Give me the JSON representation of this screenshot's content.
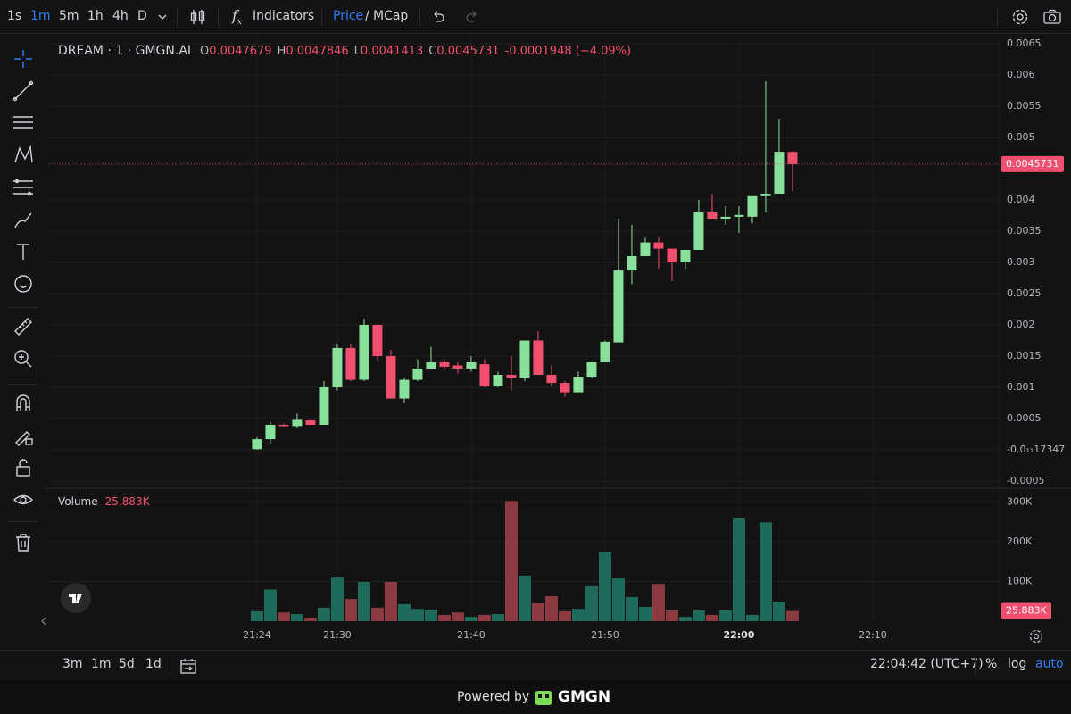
{
  "toolbar": {
    "intervals": [
      "1s",
      "1m",
      "5m",
      "1h",
      "4h",
      "D"
    ],
    "active_interval": "1m",
    "indicators": "Indicators",
    "price": "Price",
    "slash": "/",
    "mcap": "MCap"
  },
  "legend_header": {
    "title": "DREAM · 1 · GMGN.AI",
    "fields": [
      {
        "key": "O",
        "value": "0.0047679"
      },
      {
        "key": "H",
        "value": "0.0047846"
      },
      {
        "key": "L",
        "value": "0.0041413"
      },
      {
        "key": "C",
        "value": "0.0045731"
      }
    ],
    "change": "-0.0001948 (−4.09%)"
  },
  "chart_data": {
    "type": "candlestick",
    "x": [
      1284,
      1285,
      1286,
      1287,
      1288,
      1289,
      1290,
      1291,
      1292,
      1293,
      1294,
      1295,
      1296,
      1297,
      1298,
      1299,
      1300,
      1301,
      1302,
      1303,
      1304,
      1305,
      1306,
      1307,
      1308,
      1309,
      1310,
      1311,
      1312,
      1313,
      1314,
      1315,
      1316,
      1317,
      1318,
      1319,
      1320,
      1321,
      1322,
      1323,
      1324
    ],
    "open": [
      1e-05,
      0.00017,
      0.0004,
      0.00038,
      0.00047,
      0.0004,
      0.001,
      0.00163,
      0.00112,
      0.002,
      0.0015,
      0.00082,
      0.00112,
      0.0013,
      0.0014,
      0.00135,
      0.0013,
      0.00137,
      0.00102,
      0.0012,
      0.00115,
      0.00175,
      0.0012,
      0.00107,
      0.00092,
      0.00117,
      0.0014,
      0.00172,
      0.00287,
      0.0031,
      0.00332,
      0.00322,
      0.003,
      0.0032,
      0.0038,
      0.0037,
      0.00373,
      0.00373,
      0.00406,
      0.0041,
      0.0047679
    ],
    "high": [
      0.0002,
      0.00045,
      0.00042,
      0.00058,
      0.00048,
      0.0011,
      0.0017,
      0.0017,
      0.0021,
      0.002,
      0.0016,
      0.00115,
      0.00145,
      0.00165,
      0.00145,
      0.0014,
      0.0015,
      0.00145,
      0.00125,
      0.0015,
      0.00175,
      0.0019,
      0.00135,
      0.0011,
      0.00125,
      0.0014,
      0.00175,
      0.0037,
      0.0036,
      0.0034,
      0.0034,
      0.00322,
      0.0032,
      0.004,
      0.0041,
      0.0039,
      0.0039,
      0.00406,
      0.0059,
      0.0053,
      0.0047846
    ],
    "low": [
      0.0,
      0.0001,
      0.00037,
      0.00035,
      0.0004,
      0.0004,
      0.00095,
      0.0011,
      0.0011,
      0.00143,
      0.00082,
      0.00075,
      0.0011,
      0.0013,
      0.0013,
      0.00122,
      0.00125,
      0.001,
      0.001,
      0.00095,
      0.0011,
      0.0012,
      0.00103,
      0.00085,
      0.00092,
      0.00115,
      0.0014,
      0.00172,
      0.00265,
      0.0031,
      0.0029,
      0.0027,
      0.0029,
      0.0032,
      0.0037,
      0.0036,
      0.00347,
      0.00363,
      0.0038,
      0.0041,
      0.0041413
    ],
    "close": [
      0.00017,
      0.0004,
      0.00038,
      0.00048,
      0.0004,
      0.001,
      0.00163,
      0.00112,
      0.002,
      0.0015,
      0.00082,
      0.00112,
      0.0013,
      0.0014,
      0.00133,
      0.0013,
      0.0014,
      0.00102,
      0.0012,
      0.00115,
      0.00175,
      0.0012,
      0.00107,
      0.00092,
      0.00117,
      0.0014,
      0.00173,
      0.00287,
      0.0031,
      0.00332,
      0.00322,
      0.003,
      0.0032,
      0.0038,
      0.0037,
      0.00373,
      0.00376,
      0.00406,
      0.0041,
      0.00477,
      0.0045731
    ],
    "last_value_label": "0.0045731",
    "up_color": "#88e09b",
    "down_color": "#f0506e",
    "ylim": [
      -0.000586,
      0.0066
    ],
    "yticks": [
      0.0065,
      0.006,
      0.0055,
      0.005,
      0.004,
      0.0035,
      0.003,
      0.0025,
      0.002,
      0.0015,
      0.001,
      0.0005,
      {
        "value": -1.7347e-12,
        "label": "-0.0₁₁17347"
      },
      -0.0005
    ],
    "xlim": [
      1268.47,
      1339.47
    ],
    "xticks": [
      {
        "value": 1284,
        "label": "21:24"
      },
      {
        "value": 1290,
        "label": "21:30"
      },
      {
        "value": 1300,
        "label": "21:40"
      },
      {
        "value": 1310,
        "label": "21:50"
      },
      {
        "value": 1320,
        "label": "22:00"
      },
      {
        "value": 1330,
        "label": "22:10"
      }
    ],
    "grid": true,
    "volume": {
      "name": "Volume",
      "values": [
        25000,
        80000,
        22000,
        18000,
        9000,
        34000,
        110000,
        56000,
        99000,
        34000,
        99000,
        43000,
        31000,
        29000,
        16000,
        22000,
        11000,
        16000,
        18000,
        303000,
        115000,
        45000,
        63000,
        25000,
        31000,
        88000,
        175000,
        108000,
        61000,
        36000,
        94000,
        27000,
        11000,
        27000,
        16000,
        27000,
        261000,
        16000,
        249000,
        49000,
        25883
      ],
      "last_value_label": "25.883K",
      "up_color": "#1f6b5b",
      "down_color": "#8a3a40",
      "ylim": [
        0,
        333000
      ],
      "yticks": [
        {
          "value": 100000,
          "label": "100K"
        },
        {
          "value": 200000,
          "label": "200K"
        },
        {
          "value": 300000,
          "label": "300K"
        }
      ]
    }
  },
  "bottom_bar": {
    "ranges": [
      "3m",
      "1m",
      "5d",
      "1d"
    ],
    "clock": "22:04:42 (UTC+7)",
    "percent": "%",
    "log": "log",
    "auto": "auto"
  },
  "footer": {
    "powered": "Powered by",
    "brand": "GMGN"
  }
}
